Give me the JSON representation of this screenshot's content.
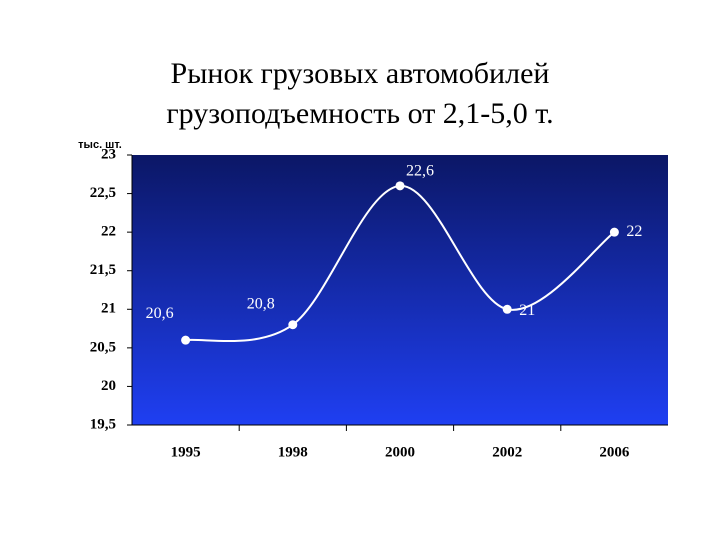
{
  "chart_data": {
    "type": "line",
    "title": [
      "Рынок грузовых автомобилей",
      "грузоподъемность от 2,1-5,0 т."
    ],
    "y_label": "тыс. шт.",
    "categories": [
      "1995",
      "1998",
      "2000",
      "2002",
      "2006"
    ],
    "values": [
      20.6,
      20.8,
      22.6,
      21,
      22
    ],
    "value_labels": [
      "20,6",
      "20,8",
      "22,6",
      "21",
      "22"
    ],
    "color": "#ffffff",
    "ylim": [
      19.5,
      23
    ],
    "yticks": [
      {
        "value": 19.5,
        "label": "19,5"
      },
      20,
      {
        "value": 20.5,
        "label": "20,5"
      },
      21,
      {
        "value": 21.5,
        "label": "21,5"
      },
      22,
      {
        "value": 22.5,
        "label": "22,5"
      },
      23
    ],
    "grid": false
  }
}
